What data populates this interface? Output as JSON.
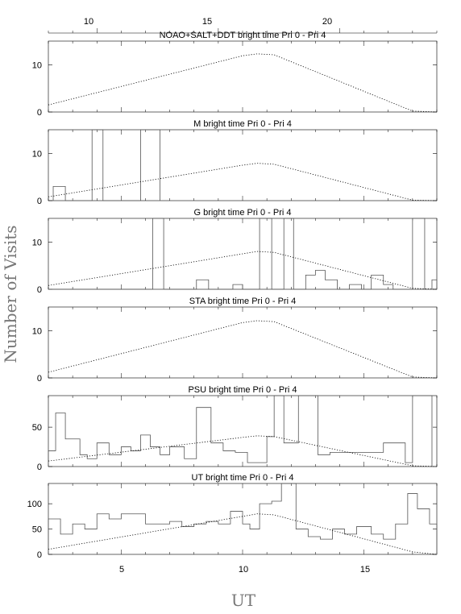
{
  "figure": {
    "ylabel": "Number of Visits",
    "xlabel": "UT",
    "top_axis_ticks": [
      "10",
      "15",
      "20"
    ],
    "bottom_axis_ticks": [
      "5",
      "10",
      "15"
    ]
  },
  "chart_data": [
    {
      "type": "line",
      "title": "NOAO+SALT+DDT    bright time Pri 0 - Pri 4",
      "ylim": [
        0,
        15
      ],
      "yticks": [
        0,
        10
      ],
      "x": [
        2,
        10,
        10.6,
        11.3,
        17,
        18
      ],
      "dotted": [
        1.5,
        11.9,
        12.3,
        12.1,
        0.2,
        0
      ],
      "hist_edges": [],
      "hist_values": []
    },
    {
      "type": "line",
      "title": "M    bright time Pri 0 - Pri 4",
      "ylim": [
        0,
        15
      ],
      "yticks": [
        0,
        10
      ],
      "x": [
        2,
        10,
        10.6,
        11.3,
        17,
        18
      ],
      "dotted": [
        0.8,
        7.5,
        7.9,
        7.7,
        0.1,
        0
      ],
      "hist_edges": [
        2.2,
        2.7,
        3.8,
        4.25,
        5.8,
        6.25,
        6.6
      ],
      "hist_values": [
        3,
        0,
        15,
        0,
        15,
        15
      ]
    },
    {
      "type": "line",
      "title": "G    bright time Pri 0 - Pri 4",
      "ylim": [
        0,
        15
      ],
      "yticks": [
        0,
        10
      ],
      "x": [
        2,
        10,
        10.6,
        11.3,
        17,
        18
      ],
      "dotted": [
        0.8,
        7.5,
        8,
        7.8,
        0.2,
        0
      ],
      "hist_edges": [
        2,
        6.3,
        6.75,
        8.1,
        8.6,
        9.6,
        10,
        10.7,
        11.2,
        11.7,
        12.1,
        12.6,
        13,
        13.4,
        13.9,
        14.4,
        14.9,
        15.3,
        15.8,
        16.2,
        16.6,
        17,
        17.5,
        17.8,
        18
      ],
      "hist_values": [
        0,
        15,
        0,
        2,
        0,
        1,
        0,
        15,
        0,
        15,
        0,
        3,
        4,
        2,
        0,
        1,
        0,
        3,
        1,
        0,
        0,
        15,
        0,
        2
      ]
    },
    {
      "type": "line",
      "title": "STA    bright time Pri 0 - Pri 4",
      "ylim": [
        0,
        15
      ],
      "yticks": [
        0,
        10
      ],
      "x": [
        2,
        10,
        10.6,
        11.3,
        17,
        18
      ],
      "dotted": [
        1.2,
        11.7,
        12.1,
        11.9,
        0.2,
        0
      ],
      "hist_edges": [],
      "hist_values": []
    },
    {
      "type": "line",
      "title": "PSU    bright time Pri 0 - Pri 4",
      "ylim": [
        0,
        90
      ],
      "yticks": [
        0,
        50
      ],
      "x": [
        2,
        10,
        10.6,
        11.3,
        17,
        18
      ],
      "dotted": [
        7,
        37,
        39,
        38,
        1,
        0
      ],
      "hist_edges": [
        2,
        2.3,
        2.7,
        3.3,
        3.6,
        4,
        4.5,
        5,
        5.4,
        5.8,
        6.2,
        6.6,
        7,
        7.6,
        8.1,
        8.7,
        9.2,
        9.7,
        10.2,
        11,
        11.3,
        11.7,
        12.3,
        13.1,
        13.6,
        14.7,
        15.8,
        16.7,
        17,
        17.8,
        18
      ],
      "hist_values": [
        20,
        68,
        35,
        15,
        10,
        30,
        15,
        25,
        20,
        40,
        25,
        15,
        25,
        10,
        75,
        30,
        20,
        18,
        5,
        38,
        90,
        30,
        90,
        15,
        18,
        18,
        30,
        5,
        90,
        0
      ]
    },
    {
      "type": "line",
      "title": "UT    bright time Pri 0 - Pri 4",
      "ylim": [
        0,
        140
      ],
      "yticks": [
        0,
        50,
        100
      ],
      "x": [
        2,
        10,
        10.6,
        11.3,
        17,
        18
      ],
      "dotted": [
        10,
        75,
        80,
        78,
        5,
        0
      ],
      "hist_edges": [
        2,
        2.5,
        3,
        3.5,
        4,
        4.5,
        5,
        6,
        7,
        7.5,
        8,
        8.5,
        9,
        9.5,
        10,
        10.3,
        10.7,
        11.2,
        11.6,
        12.2,
        12.7,
        13.2,
        13.7,
        14.2,
        14.7,
        15.3,
        15.8,
        16.3,
        16.8,
        17.2,
        17.7,
        18
      ],
      "hist_values": [
        70,
        40,
        60,
        50,
        80,
        70,
        80,
        60,
        65,
        55,
        60,
        65,
        60,
        85,
        60,
        50,
        100,
        105,
        140,
        50,
        35,
        30,
        50,
        40,
        55,
        40,
        30,
        60,
        120,
        90,
        60
      ]
    }
  ]
}
